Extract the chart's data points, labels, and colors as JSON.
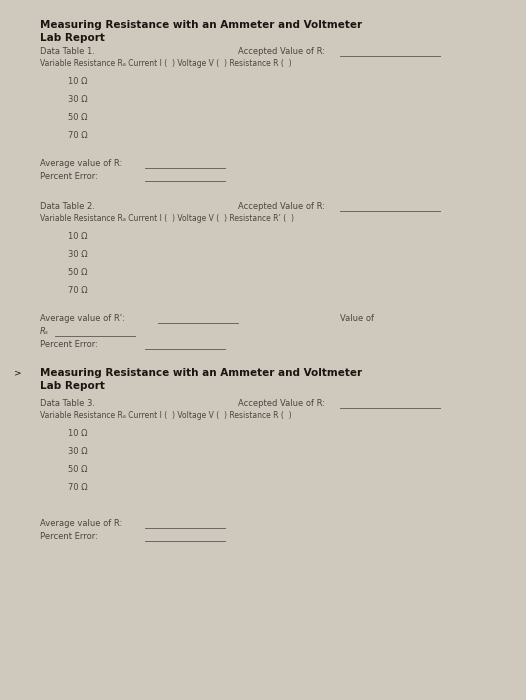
{
  "bg_color": "#cfc8bc",
  "text_color": "#4a4540",
  "heading_color": "#1a1510",
  "title1": "Measuring Resistance with an Ammeter and Voltmeter",
  "title2": "Lab Report",
  "s1_table": "Data Table 1.",
  "s1_accepted": "Accepted Value of R:",
  "s1_colhdr": "Variable Resistance Rₐ Current I (  ) Voltage V (  ) Resistance R (  )",
  "s1_rows": [
    "10 Ω",
    "30 Ω",
    "50 Ω",
    "70 Ω"
  ],
  "s1_avg": "Average value of R:",
  "s1_pct": "Percent Error:",
  "s2_table": "Data Table 2.",
  "s2_accepted": "Accepted Value of R:",
  "s2_colhdr": "Variable Resistance Rₐ Current I (  ) Voltage V (  ) Resistance R’ (  )",
  "s2_rows": [
    "10 Ω",
    "30 Ω",
    "50 Ω",
    "70 Ω"
  ],
  "s2_avg": "Average value of R’:",
  "s2_valueof": "Value of",
  "s2_rs": "Rₛ",
  "s2_pct": "Percent Error:",
  "s3_title1": "Measuring Resistance with an Ammeter and Voltmeter",
  "s3_title2": "Lab Report",
  "s3_table": "Data Table 3.",
  "s3_accepted": "Accepted Value of R:",
  "s3_colhdr": "Variable Resistance Rₐ Current I (  ) Voltage V (  ) Resistance R (  )",
  "s3_rows": [
    "10 Ω",
    "30 Ω",
    "50 Ω",
    "70 Ω"
  ],
  "s3_avg": "Average value of R:",
  "s3_pct": "Percent Error:"
}
